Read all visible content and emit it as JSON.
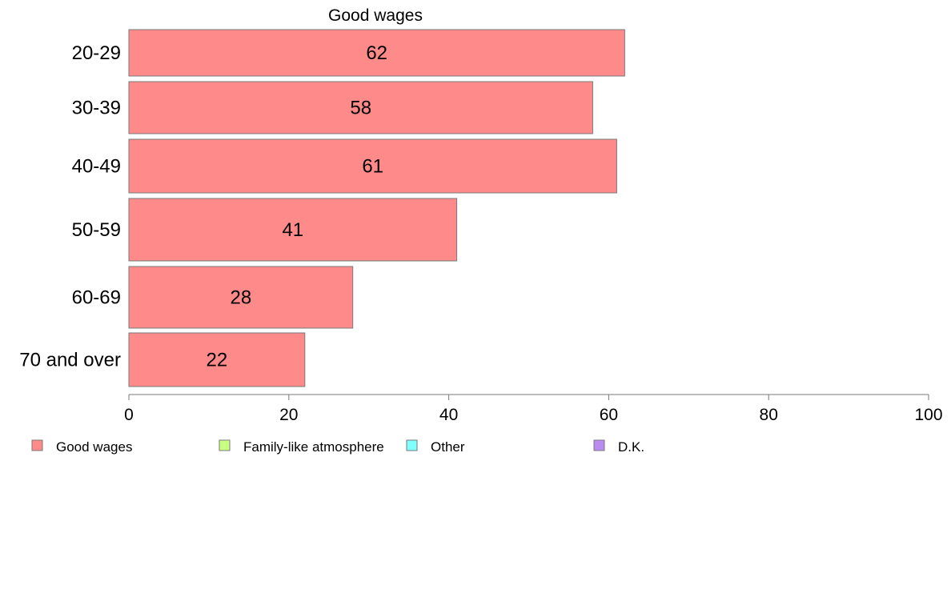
{
  "chart_data": {
    "type": "bar",
    "orientation": "horizontal",
    "title": "Good wages",
    "categories": [
      "20-29",
      "30-39",
      "40-49",
      "50-59",
      "60-69",
      "70 and over"
    ],
    "series": [
      {
        "name": "Good wages",
        "values": [
          62,
          58,
          61,
          41,
          28,
          22
        ]
      }
    ],
    "xlim": [
      0,
      100
    ],
    "xticks": [
      0,
      20,
      40,
      60,
      80,
      100
    ],
    "grid": false,
    "legend": {
      "placement": "bottom",
      "entries": [
        {
          "label": "Good wages",
          "color": "#ff8a8a"
        },
        {
          "label": "Family-like atmosphere",
          "color": "#c8ff80"
        },
        {
          "label": "Other",
          "color": "#80ffff"
        },
        {
          "label": "D.K.",
          "color": "#b98cf2"
        }
      ]
    },
    "bar_color": "#ff8a8a",
    "bar_stroke": "#7a7a7a"
  }
}
